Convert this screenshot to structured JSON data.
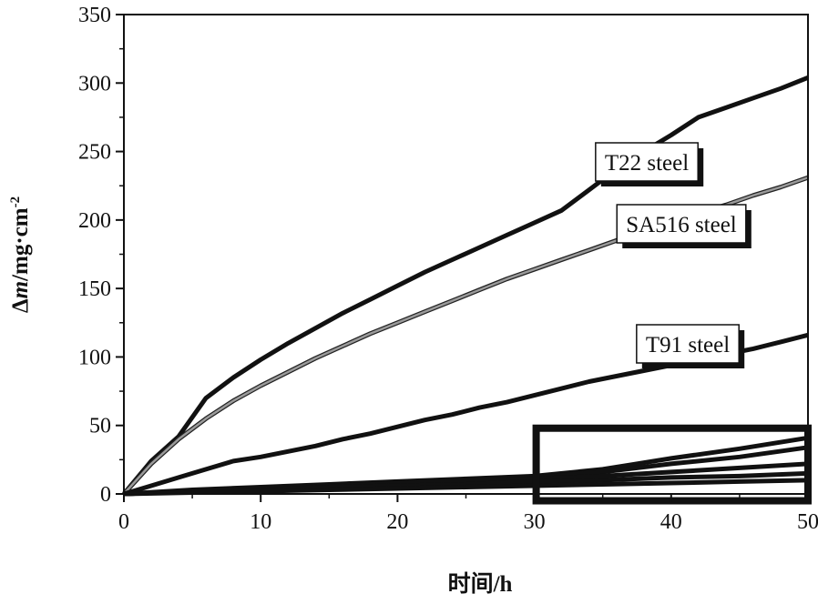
{
  "chart_data": {
    "type": "line",
    "xlabel": "时间/h",
    "ylabel_parts": {
      "delta": "Δ",
      "italic_m": "m",
      "unit": "/mg·cm",
      "sup": "-2"
    },
    "xlim": [
      0,
      50
    ],
    "ylim": [
      0,
      350
    ],
    "x_ticks": [
      "0",
      "10",
      "20",
      "30",
      "40",
      "50"
    ],
    "y_ticks": [
      "0",
      "50",
      "100",
      "150",
      "200",
      "250",
      "300",
      "350"
    ],
    "grid": false,
    "series": [
      {
        "name": "T22 steel",
        "color": "#111111",
        "x": [
          0,
          2,
          4,
          6,
          8,
          10,
          12,
          14,
          16,
          18,
          20,
          22,
          24,
          26,
          28,
          30,
          32,
          34,
          36,
          38,
          40,
          42,
          44,
          46,
          48,
          50
        ],
        "y": [
          0,
          24,
          42,
          70,
          85,
          98,
          110,
          121,
          132,
          142,
          152,
          162,
          171,
          180,
          189,
          198,
          207,
          222,
          237,
          250,
          262,
          275,
          282,
          289,
          296,
          304
        ]
      },
      {
        "name": "SA516 steel",
        "color": "#9a9a9a",
        "x": [
          0,
          2,
          4,
          6,
          8,
          10,
          12,
          14,
          16,
          18,
          20,
          22,
          24,
          26,
          28,
          30,
          32,
          34,
          36,
          38,
          40,
          42,
          44,
          46,
          48,
          50
        ],
        "y": [
          0,
          22,
          40,
          55,
          68,
          79,
          89,
          99,
          108,
          117,
          125,
          133,
          141,
          149,
          157,
          164,
          171,
          178,
          185,
          192,
          198,
          205,
          211,
          218,
          224,
          231
        ]
      },
      {
        "name": "T91 steel",
        "color": "#111111",
        "x": [
          0,
          2,
          4,
          6,
          8,
          10,
          12,
          14,
          16,
          18,
          20,
          22,
          24,
          26,
          28,
          30,
          32,
          34,
          36,
          38,
          40,
          42,
          44,
          46,
          48,
          50
        ],
        "y": [
          0,
          6,
          12,
          18,
          24,
          27,
          31,
          35,
          40,
          44,
          49,
          54,
          58,
          63,
          67,
          72,
          77,
          82,
          86,
          90,
          94,
          98,
          102,
          106,
          111,
          116
        ]
      },
      {
        "name": "",
        "color": "#111111",
        "x": [
          0,
          5,
          10,
          15,
          20,
          25,
          30,
          35,
          40,
          45,
          50
        ],
        "y": [
          0,
          3,
          5,
          7,
          9,
          11,
          13,
          18,
          26,
          33,
          41
        ]
      },
      {
        "name": "",
        "color": "#111111",
        "x": [
          0,
          5,
          10,
          15,
          20,
          25,
          30,
          35,
          40,
          45,
          50
        ],
        "y": [
          0,
          2,
          4,
          6,
          8,
          10,
          12,
          16,
          22,
          27,
          34
        ]
      },
      {
        "name": "",
        "color": "#111111",
        "x": [
          0,
          5,
          10,
          15,
          20,
          25,
          30,
          35,
          40,
          45,
          50
        ],
        "y": [
          0,
          2,
          4,
          6,
          8,
          10,
          11,
          13,
          16,
          19,
          22
        ]
      },
      {
        "name": "",
        "color": "#111111",
        "x": [
          0,
          5,
          10,
          15,
          20,
          25,
          30,
          35,
          40,
          45,
          50
        ],
        "y": [
          0,
          2,
          3,
          5,
          6,
          7,
          9,
          10,
          12,
          13,
          15
        ]
      },
      {
        "name": "",
        "color": "#111111",
        "x": [
          0,
          5,
          10,
          15,
          20,
          25,
          30,
          35,
          40,
          45,
          50
        ],
        "y": [
          0,
          1,
          2,
          3,
          4,
          5,
          6,
          7,
          8,
          9,
          10
        ]
      }
    ],
    "labels": [
      {
        "text": "T22 steel",
        "series": 0
      },
      {
        "text": "SA516 steel",
        "series": 1
      },
      {
        "text": "T91 steel",
        "series": 2
      }
    ],
    "highlight_box": {
      "x_range": [
        30,
        50
      ],
      "y_range": [
        -5,
        48
      ]
    }
  }
}
